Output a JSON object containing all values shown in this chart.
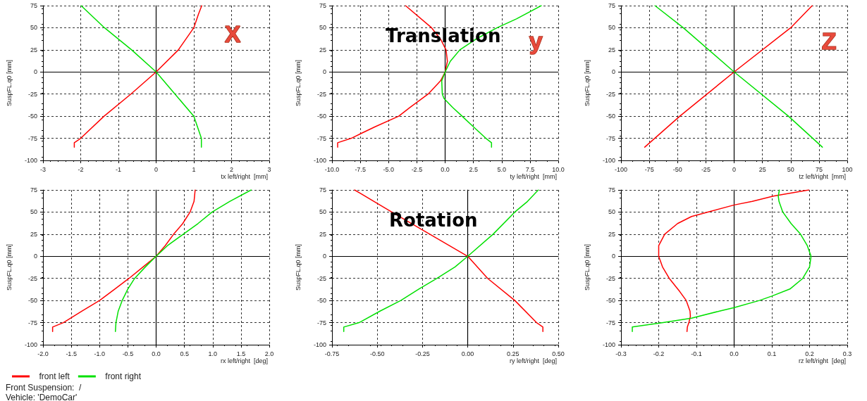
{
  "chart_data": [
    {
      "type": "line",
      "xlabel": "tx left/right  [mm]",
      "ylabel": "SuspFL.q0 [mm]",
      "xlim": [
        -3,
        3
      ],
      "xticks": [
        -3,
        -2,
        -1,
        0,
        1,
        2,
        3
      ],
      "ylim": [
        -100,
        75
      ],
      "yticks": [
        -100,
        -75,
        -50,
        -25,
        0,
        25,
        50,
        75
      ],
      "grid": true,
      "legend": "bottom",
      "marker": "none",
      "line_style": "solid",
      "annotations": [
        "X",
        "Front Suspension:  /",
        "Vehicle: 'DemoCar'"
      ],
      "series": [
        {
          "name": "front left",
          "color": "#ff0000",
          "x": [
            -2.17,
            -2.17,
            -2.0,
            -1.38,
            -0.67,
            0,
            0.59,
            1.0,
            1.12,
            1.21
          ],
          "values": [
            -85,
            -80,
            -75,
            -50,
            -25,
            0,
            25,
            50,
            65,
            75
          ]
        },
        {
          "name": "front right",
          "color": "#00e000",
          "x": [
            -1.99,
            -1.37,
            -0.65,
            0,
            0.5,
            1.0,
            1.12,
            1.2,
            1.2
          ],
          "values": [
            75,
            50,
            25,
            0,
            -25,
            -50,
            -65,
            -75,
            -85
          ]
        }
      ]
    },
    {
      "type": "line",
      "xlabel": "ty left/right  [mm]",
      "ylabel": "SuspFL.q0 [mm]",
      "xlim": [
        -10,
        10
      ],
      "xticks": [
        {
          "value": -10,
          "label": "-10.0"
        },
        {
          "value": -7.5,
          "label": "-7.5"
        },
        {
          "value": -5,
          "label": "-5.0"
        },
        {
          "value": -2.5,
          "label": "-2.5"
        },
        {
          "value": 0,
          "label": "0.0"
        },
        {
          "value": 2.5,
          "label": "2.5"
        },
        {
          "value": 5,
          "label": "5.0"
        },
        {
          "value": 7.5,
          "label": "7.5"
        },
        {
          "value": 10,
          "label": "10.0"
        }
      ],
      "ylim": [
        -100,
        75
      ],
      "yticks": [
        -100,
        -75,
        -50,
        -25,
        0,
        25,
        50,
        75
      ],
      "grid": true,
      "marker": "none",
      "line_style": "solid",
      "annotations": [
        "Translation",
        "y"
      ],
      "series": [
        {
          "color": "#ff0000",
          "x": [
            -9.5,
            -9.5,
            -8.3,
            -7.5,
            -6.2,
            -4.1,
            -3.1,
            -1.5,
            -0.4,
            0,
            0.2,
            0.08,
            -0.4,
            -1.2,
            -3.5
          ],
          "values": [
            -85,
            -80,
            -75,
            -70,
            -62,
            -50,
            -40,
            -25,
            -10,
            0,
            12,
            25,
            37,
            50,
            75
          ]
        },
        {
          "color": "#00e000",
          "x": [
            4.1,
            4.1,
            3.6,
            2.5,
            1.5,
            0.65,
            -0.1,
            -0.25,
            -0.3,
            0,
            0.45,
            1.3,
            2.7,
            4.6,
            6.3,
            8.5
          ],
          "values": [
            -85,
            -80,
            -75,
            -62,
            -50,
            -40,
            -30,
            -25,
            -10,
            0,
            12,
            25,
            37,
            50,
            60,
            75
          ]
        }
      ]
    },
    {
      "type": "line",
      "xlabel": "tz left/right  [mm]",
      "ylabel": "SuspFL.q0 [mm]",
      "xlim": [
        -100,
        100
      ],
      "xticks": [
        -100,
        -75,
        -50,
        -25,
        0,
        25,
        50,
        75,
        100
      ],
      "ylim": [
        -100,
        75
      ],
      "yticks": [
        -100,
        -75,
        -50,
        -25,
        0,
        25,
        50,
        75
      ],
      "grid": true,
      "marker": "none",
      "line_style": "solid",
      "annotations": [
        "Z"
      ],
      "series": [
        {
          "color": "#ff0000",
          "x": [
            -79,
            -48,
            0,
            50,
            69
          ],
          "values": [
            -85,
            -50,
            0,
            50,
            75
          ]
        },
        {
          "color": "#00e000",
          "x": [
            -70,
            -45,
            0,
            48,
            78
          ],
          "values": [
            75,
            50,
            0,
            -50,
            -85
          ]
        }
      ]
    },
    {
      "type": "line",
      "xlabel": "rx left/right  [deg]",
      "ylabel": "SuspFL.q0 [mm]",
      "xlim": [
        -2,
        2
      ],
      "xticks": [
        {
          "value": -2,
          "label": "-2.0"
        },
        {
          "value": -1.5,
          "label": "-1.5"
        },
        {
          "value": -1,
          "label": "-1.0"
        },
        {
          "value": -0.5,
          "label": "-0.5"
        },
        {
          "value": 0,
          "label": "0.0"
        },
        {
          "value": 0.5,
          "label": "0.5"
        },
        {
          "value": 1,
          "label": "1.0"
        },
        {
          "value": 1.5,
          "label": "1.5"
        },
        {
          "value": 2,
          "label": "2.0"
        }
      ],
      "ylim": [
        -100,
        75
      ],
      "yticks": [
        -100,
        -75,
        -50,
        -25,
        0,
        25,
        50,
        75
      ],
      "grid": true,
      "marker": "none",
      "line_style": "solid",
      "series": [
        {
          "color": "#ff0000",
          "x": [
            -1.83,
            -1.83,
            -1.64,
            -1.31,
            -1.0,
            -0.73,
            -0.48,
            -0.23,
            0,
            0.16,
            0.31,
            0.47,
            0.6,
            0.67,
            0.69
          ],
          "values": [
            -85,
            -80,
            -75,
            -62,
            -50,
            -37,
            -25,
            -12,
            0,
            12,
            25,
            37,
            50,
            62,
            75
          ]
        },
        {
          "color": "#00e000",
          "x": [
            -0.72,
            -0.71,
            -0.67,
            -0.6,
            -0.5,
            -0.38,
            -0.19,
            0,
            0.2,
            0.48,
            0.74,
            0.99,
            1.3,
            1.68
          ],
          "values": [
            -85,
            -75,
            -62,
            -50,
            -37,
            -25,
            -12,
            0,
            12,
            25,
            37,
            50,
            62,
            75
          ]
        }
      ]
    },
    {
      "type": "line",
      "xlabel": "ry left/right  [deg]",
      "ylabel": "SuspFL.q0 [mm]",
      "xlim": [
        -0.75,
        0.5
      ],
      "xticks": [
        {
          "value": -0.75,
          "label": "-0.75"
        },
        {
          "value": -0.5,
          "label": "-0.50"
        },
        {
          "value": -0.25,
          "label": "-0.25"
        },
        {
          "value": 0,
          "label": "0.00"
        },
        {
          "value": 0.25,
          "label": "0.25"
        },
        {
          "value": 0.5,
          "label": "0.50"
        }
      ],
      "ylim": [
        -100,
        75
      ],
      "yticks": [
        -100,
        -75,
        -50,
        -25,
        0,
        25,
        50,
        75
      ],
      "grid": true,
      "marker": "none",
      "line_style": "solid",
      "annotations": [
        "Rotation"
      ],
      "series": [
        {
          "color": "#ff0000",
          "x": [
            -0.625,
            -0.42,
            -0.21,
            0,
            0.11,
            0.26,
            0.38,
            0.415,
            0.415
          ],
          "values": [
            75,
            50,
            25,
            0,
            -25,
            -50,
            -75,
            -80,
            -85
          ]
        },
        {
          "color": "#00e000",
          "x": [
            -0.685,
            -0.685,
            -0.6,
            -0.485,
            -0.37,
            -0.27,
            -0.17,
            -0.07,
            0,
            0.14,
            0.26,
            0.33,
            0.39
          ],
          "values": [
            -85,
            -80,
            -75,
            -62,
            -50,
            -37,
            -25,
            -12,
            0,
            25,
            50,
            62,
            75
          ]
        }
      ]
    },
    {
      "type": "line",
      "xlabel": "rz left/right  [deg]",
      "ylabel": "SuspFL.q0 [mm]",
      "xlim": [
        -0.3,
        0.3
      ],
      "xticks": [
        {
          "value": -0.3,
          "label": "-0.3"
        },
        {
          "value": -0.2,
          "label": "-0.2"
        },
        {
          "value": -0.1,
          "label": "-0.1"
        },
        {
          "value": 0,
          "label": "0.0"
        },
        {
          "value": 0.1,
          "label": "0.1"
        },
        {
          "value": 0.2,
          "label": "0.2"
        },
        {
          "value": 0.3,
          "label": "0.3"
        }
      ],
      "ylim": [
        -100,
        75
      ],
      "yticks": [
        -100,
        -75,
        -50,
        -25,
        0,
        25,
        50,
        75
      ],
      "grid": true,
      "marker": "none",
      "line_style": "solid",
      "series": [
        {
          "color": "#ff0000",
          "x": [
            -0.125,
            -0.124,
            -0.12,
            -0.116,
            -0.117,
            -0.127,
            -0.144,
            -0.172,
            -0.19,
            -0.2,
            -0.2,
            -0.184,
            -0.15,
            -0.113,
            -0.07,
            0,
            0.048,
            0.104,
            0.198
          ],
          "values": [
            -85,
            -80,
            -75,
            -68,
            -62,
            -50,
            -40,
            -25,
            -12,
            0,
            12,
            25,
            37,
            45,
            50,
            58,
            62,
            68,
            75
          ]
        },
        {
          "color": "#00e000",
          "x": [
            -0.27,
            -0.27,
            -0.188,
            -0.113,
            -0.039,
            0,
            0.067,
            0.1,
            0.148,
            0.182,
            0.2,
            0.204,
            0.194,
            0.176,
            0.151,
            0.129,
            0.119,
            0.117,
            0.12
          ],
          "values": [
            -85,
            -80,
            -75,
            -70,
            -62,
            -58,
            -50,
            -45,
            -37,
            -25,
            -12,
            0,
            12,
            25,
            37,
            50,
            62,
            68,
            75
          ]
        }
      ]
    }
  ]
}
